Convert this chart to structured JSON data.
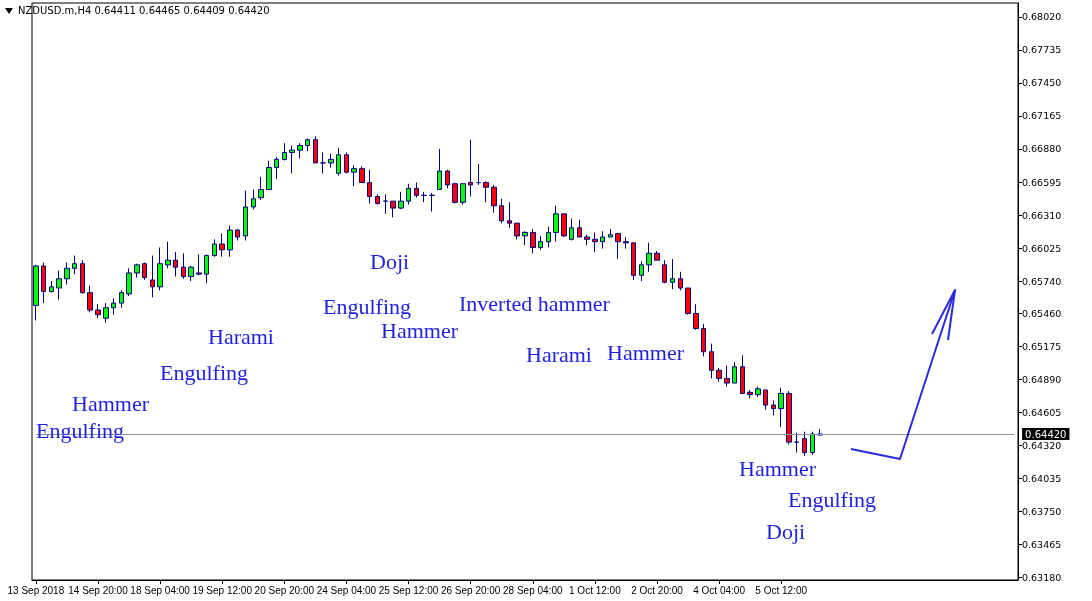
{
  "chart_data": {
    "type": "candlestick",
    "title": "NZDUSD.m,H4 0.64411 0.64465 0.64409 0.64420",
    "categories": [
      "13 Sep 2018",
      null,
      null,
      null,
      null,
      null,
      null,
      null,
      "14 Sep 20:00",
      null,
      null,
      null,
      null,
      null,
      null,
      null,
      "18 Sep 04:00",
      null,
      null,
      null,
      null,
      null,
      null,
      null,
      "19 Sep 12:00",
      null,
      null,
      null,
      null,
      null,
      null,
      null,
      "20 Sep 20:00",
      null,
      null,
      null,
      null,
      null,
      null,
      null,
      "24 Sep 04:00",
      null,
      null,
      null,
      null,
      null,
      null,
      null,
      "25 Sep 12:00",
      null,
      null,
      null,
      null,
      null,
      null,
      null,
      "26 Sep 20:00",
      null,
      null,
      null,
      null,
      null,
      null,
      null,
      "28 Sep 04:00",
      null,
      null,
      null,
      null,
      null,
      null,
      null,
      "1 Oct 12:00",
      null,
      null,
      null,
      null,
      null,
      null,
      null,
      "2 Oct 20:00",
      null,
      null,
      null,
      null,
      null,
      null,
      null,
      "4 Oct 04:00",
      null,
      null,
      null,
      null,
      null,
      null,
      null,
      "5 Oct 12:00",
      null,
      null,
      null,
      null,
      null,
      null,
      null,
      null,
      null,
      null,
      null,
      null,
      null,
      null,
      null,
      null,
      null,
      null,
      null,
      null,
      null,
      null,
      null,
      null,
      null,
      null,
      null,
      null,
      null,
      null
    ],
    "ohlc": [
      [
        0.6553,
        0.6588,
        0.654,
        0.6587
      ],
      [
        0.6587,
        0.659,
        0.6555,
        0.6565
      ],
      [
        0.6565,
        0.6574,
        0.6564,
        0.6569
      ],
      [
        0.6568,
        0.6583,
        0.6558,
        0.6576
      ],
      [
        0.6576,
        0.659,
        0.6571,
        0.6585
      ],
      [
        0.6585,
        0.6596,
        0.658,
        0.6589
      ],
      [
        0.6589,
        0.6592,
        0.6563,
        0.6564
      ],
      [
        0.6564,
        0.657,
        0.6547,
        0.6549
      ],
      [
        0.6549,
        0.6554,
        0.6542,
        0.6545
      ],
      [
        0.6542,
        0.6555,
        0.6538,
        0.6551
      ],
      [
        0.6551,
        0.6559,
        0.6545,
        0.6555
      ],
      [
        0.6555,
        0.6566,
        0.6551,
        0.6564
      ],
      [
        0.6563,
        0.6585,
        0.6561,
        0.6581
      ],
      [
        0.6581,
        0.6589,
        0.6577,
        0.6588
      ],
      [
        0.6589,
        0.659,
        0.6575,
        0.6577
      ],
      [
        0.6575,
        0.6596,
        0.656,
        0.6569
      ],
      [
        0.6569,
        0.6603,
        0.6566,
        0.6589
      ],
      [
        0.6588,
        0.6608,
        0.6585,
        0.6592
      ],
      [
        0.6592,
        0.6599,
        0.6578,
        0.6586
      ],
      [
        0.6586,
        0.6598,
        0.6576,
        0.6578
      ],
      [
        0.6578,
        0.6587,
        0.6574,
        0.6586
      ],
      [
        0.6581,
        0.6597,
        0.6579,
        0.658
      ],
      [
        0.658,
        0.6597,
        0.6572,
        0.6596
      ],
      [
        0.6596,
        0.661,
        0.6595,
        0.6606
      ],
      [
        0.6606,
        0.6615,
        0.6595,
        0.6601
      ],
      [
        0.6601,
        0.6622,
        0.6595,
        0.6618
      ],
      [
        0.6618,
        0.6619,
        0.6609,
        0.6612
      ],
      [
        0.6613,
        0.6652,
        0.6609,
        0.6638
      ],
      [
        0.6638,
        0.6653,
        0.6636,
        0.6645
      ],
      [
        0.6646,
        0.6664,
        0.6644,
        0.6653
      ],
      [
        0.6653,
        0.6678,
        0.6653,
        0.6672
      ],
      [
        0.6672,
        0.6681,
        0.6662,
        0.6679
      ],
      [
        0.6679,
        0.6693,
        0.6678,
        0.6685
      ],
      [
        0.6685,
        0.6691,
        0.6667,
        0.6687
      ],
      [
        0.6687,
        0.6693,
        0.668,
        0.6691
      ],
      [
        0.6691,
        0.6697,
        0.6686,
        0.6696
      ],
      [
        0.6696,
        0.6699,
        0.6676,
        0.6676
      ],
      [
        0.6676,
        0.6685,
        0.6667,
        0.6676
      ],
      [
        0.6676,
        0.6684,
        0.6672,
        0.6679
      ],
      [
        0.6667,
        0.6689,
        0.6665,
        0.6683
      ],
      [
        0.6683,
        0.6685,
        0.6667,
        0.6668
      ],
      [
        0.6668,
        0.6674,
        0.6656,
        0.6671
      ],
      [
        0.6671,
        0.6673,
        0.6659,
        0.6659
      ],
      [
        0.6659,
        0.667,
        0.6641,
        0.6647
      ],
      [
        0.6647,
        0.6649,
        0.664,
        0.6641
      ],
      [
        0.6643,
        0.6649,
        0.6632,
        0.6643
      ],
      [
        0.6643,
        0.6643,
        0.6629,
        0.6637
      ],
      [
        0.6637,
        0.6651,
        0.6636,
        0.6643
      ],
      [
        0.6643,
        0.6658,
        0.664,
        0.6654
      ],
      [
        0.6654,
        0.6659,
        0.6646,
        0.6648
      ],
      [
        0.6648,
        0.6651,
        0.6642,
        0.6648
      ],
      [
        0.6648,
        0.665,
        0.6634,
        0.6648
      ],
      [
        0.6653,
        0.6688,
        0.6653,
        0.6669
      ],
      [
        0.6669,
        0.667,
        0.6654,
        0.6657
      ],
      [
        0.6658,
        0.6659,
        0.6641,
        0.6642
      ],
      [
        0.6642,
        0.6658,
        0.664,
        0.6658
      ],
      [
        0.6659,
        0.6696,
        0.6647,
        0.6657
      ],
      [
        0.6659,
        0.6675,
        0.6657,
        0.6659
      ],
      [
        0.6659,
        0.666,
        0.6642,
        0.6655
      ],
      [
        0.6655,
        0.6657,
        0.6633,
        0.6639
      ],
      [
        0.6639,
        0.6645,
        0.6624,
        0.6626
      ],
      [
        0.6626,
        0.6642,
        0.662,
        0.6624
      ],
      [
        0.6624,
        0.6624,
        0.661,
        0.6613
      ],
      [
        0.6613,
        0.6617,
        0.6605,
        0.6616
      ],
      [
        0.6616,
        0.6619,
        0.6598,
        0.6603
      ],
      [
        0.6603,
        0.6613,
        0.6601,
        0.6608
      ],
      [
        0.6608,
        0.6621,
        0.6603,
        0.6616
      ],
      [
        0.6616,
        0.6639,
        0.6608,
        0.6632
      ],
      [
        0.6632,
        0.6632,
        0.6612,
        0.6613
      ],
      [
        0.661,
        0.6628,
        0.6609,
        0.662
      ],
      [
        0.662,
        0.6627,
        0.6612,
        0.6612
      ],
      [
        0.6612,
        0.6614,
        0.6605,
        0.661
      ],
      [
        0.661,
        0.6616,
        0.6599,
        0.6608
      ],
      [
        0.6608,
        0.6617,
        0.6602,
        0.6612
      ],
      [
        0.6612,
        0.6619,
        0.6612,
        0.6614
      ],
      [
        0.6615,
        0.6615,
        0.6593,
        0.6608
      ],
      [
        0.6608,
        0.6612,
        0.6602,
        0.6607
      ],
      [
        0.6607,
        0.6607,
        0.6575,
        0.6579
      ],
      [
        0.6579,
        0.6591,
        0.6574,
        0.6588
      ],
      [
        0.6588,
        0.6607,
        0.6582,
        0.6598
      ],
      [
        0.6598,
        0.66,
        0.6592,
        0.6592
      ],
      [
        0.6588,
        0.6592,
        0.6572,
        0.6573
      ],
      [
        0.6573,
        0.6593,
        0.6567,
        0.6576
      ],
      [
        0.6576,
        0.6582,
        0.6566,
        0.6568
      ],
      [
        0.6568,
        0.6568,
        0.6545,
        0.6546
      ],
      [
        0.6546,
        0.6554,
        0.6532,
        0.6533
      ],
      [
        0.6533,
        0.6537,
        0.6509,
        0.6513
      ],
      [
        0.6513,
        0.652,
        0.649,
        0.6497
      ],
      [
        0.6497,
        0.6499,
        0.6487,
        0.649
      ],
      [
        0.649,
        0.6501,
        0.6483,
        0.6486
      ],
      [
        0.6486,
        0.6504,
        0.6486,
        0.65
      ],
      [
        0.65,
        0.651,
        0.6477,
        0.6477
      ],
      [
        0.6478,
        0.648,
        0.6473,
        0.6476
      ],
      [
        0.6476,
        0.6483,
        0.6474,
        0.6481
      ],
      [
        0.648,
        0.648,
        0.6463,
        0.6467
      ],
      [
        0.6467,
        0.6471,
        0.6458,
        0.6464
      ],
      [
        0.6464,
        0.6482,
        0.6448,
        0.6477
      ],
      [
        0.6477,
        0.6479,
        0.6433,
        0.6435
      ],
      [
        0.6435,
        0.6443,
        0.6426,
        0.6435
      ],
      [
        0.6438,
        0.6444,
        0.6423,
        0.6426
      ],
      [
        0.6426,
        0.6444,
        0.6424,
        0.6442
      ],
      [
        0.64411,
        0.64465,
        0.64409,
        0.6442
      ],
      null,
      null,
      null,
      null,
      null,
      null,
      null,
      null,
      null,
      null,
      null,
      null,
      null,
      null,
      null,
      null,
      null,
      null,
      null,
      null,
      null,
      null,
      null,
      null,
      null
    ],
    "ylim": [
      0.6316,
      0.6814
    ],
    "yticks": [
      {
        "value": 0.6802,
        "label": "0.68020"
      },
      {
        "value": 0.67735,
        "label": "0.67735"
      },
      {
        "value": 0.6745,
        "label": "0.67450"
      },
      {
        "value": 0.67165,
        "label": "0.67165"
      },
      {
        "value": 0.6688,
        "label": "0.66880"
      },
      {
        "value": 0.66595,
        "label": "0.66595"
      },
      {
        "value": 0.6631,
        "label": "0.66310"
      },
      {
        "value": 0.66025,
        "label": "0.66025"
      },
      {
        "value": 0.6574,
        "label": "0.65740"
      },
      {
        "value": 0.6546,
        "label": "0.65460"
      },
      {
        "value": 0.65175,
        "label": "0.65175"
      },
      {
        "value": 0.6489,
        "label": "0.64890"
      },
      {
        "value": 0.64605,
        "label": "0.64605"
      },
      {
        "value": 0.6432,
        "label": "0.64320"
      },
      {
        "value": 0.64035,
        "label": "0.64035"
      },
      {
        "value": 0.6375,
        "label": "0.63750"
      },
      {
        "value": 0.63465,
        "label": "0.63465"
      },
      {
        "value": 0.6318,
        "label": "0.63180"
      }
    ],
    "ref_lines": [
      {
        "axis": "y",
        "value": 0.6442,
        "label": "0.64420",
        "color": "#8a98a6"
      }
    ],
    "annotations": [
      "Engulfing",
      "Hammer",
      "Engulfing",
      "Harami",
      "Doji",
      "Engulfing",
      "Hammer",
      "Inverted hammer",
      "Harami",
      "Hammer",
      "Hammer",
      "Engulfing",
      "Doji"
    ]
  }
}
